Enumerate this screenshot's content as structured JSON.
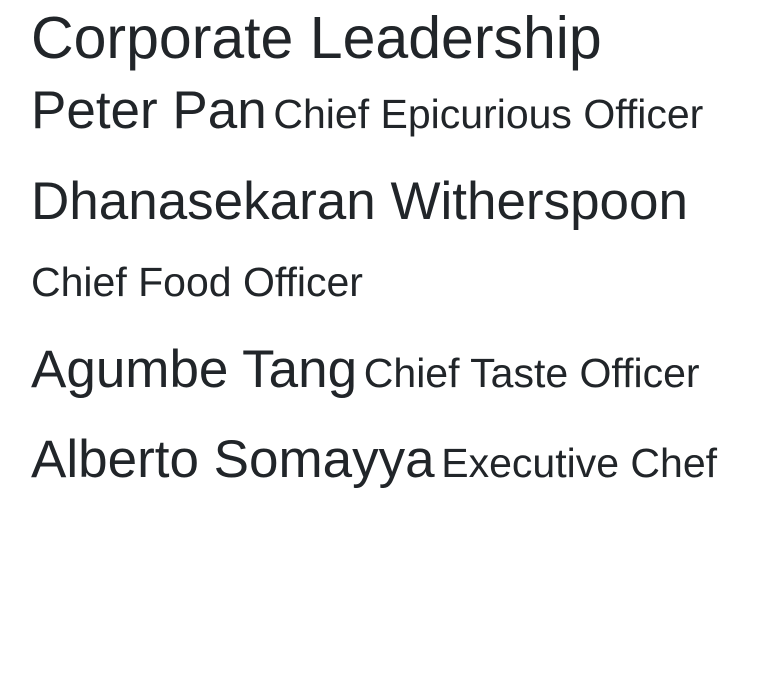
{
  "page": {
    "title": "Corporate Leadership"
  },
  "leaders": [
    {
      "name": "Peter Pan",
      "role": "Chief Epicurious Officer"
    },
    {
      "name": "Dhanasekaran Witherspoon",
      "role": "Chief Food Officer"
    },
    {
      "name": "Agumbe Tang",
      "role": "Chief Taste Officer"
    },
    {
      "name": "Alberto Somayya",
      "role": "Executive Chef"
    }
  ],
  "colors": {
    "text": "#212529",
    "background": "#ffffff"
  }
}
